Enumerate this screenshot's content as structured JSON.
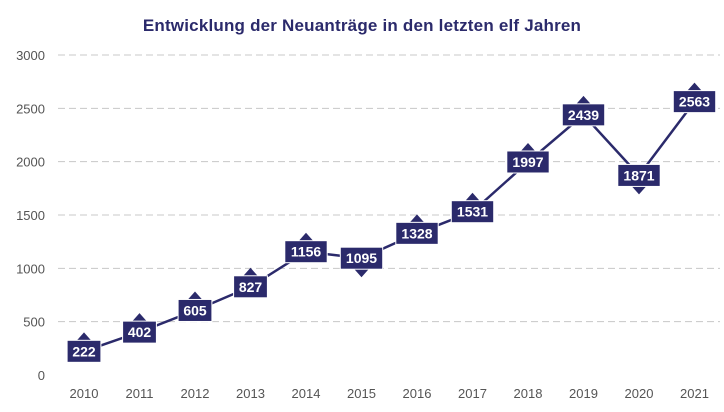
{
  "chart_data": {
    "type": "line",
    "title": "Entwicklung der Neuanträge in den letzten elf Jahren",
    "xlabel": "",
    "ylabel": "",
    "categories": [
      "2010",
      "2011",
      "2012",
      "2013",
      "2014",
      "2015",
      "2016",
      "2017",
      "2018",
      "2019",
      "2020",
      "2021"
    ],
    "series": [
      {
        "values": [
          222,
          402,
          605,
          827,
          1156,
          1095,
          1328,
          1531,
          1997,
          2439,
          1871,
          2563
        ]
      }
    ],
    "data_labels": [
      "222",
      "402",
      "605",
      "827",
      "1156",
      "1095",
      "1328",
      "1531",
      "1997",
      "2439",
      "1871",
      "2563"
    ],
    "ylim": [
      0,
      3000
    ],
    "yticks": [
      0,
      500,
      1000,
      1500,
      2000,
      2500,
      3000
    ],
    "ytick_labels": [
      "0",
      "500",
      "1000",
      "1500",
      "2000",
      "2500",
      "3000"
    ],
    "grid": true,
    "legend": "none",
    "colors": {
      "line": "#2b2a6b",
      "label_bg": "#2b2a6b",
      "grid": "#c8c8c8"
    }
  }
}
